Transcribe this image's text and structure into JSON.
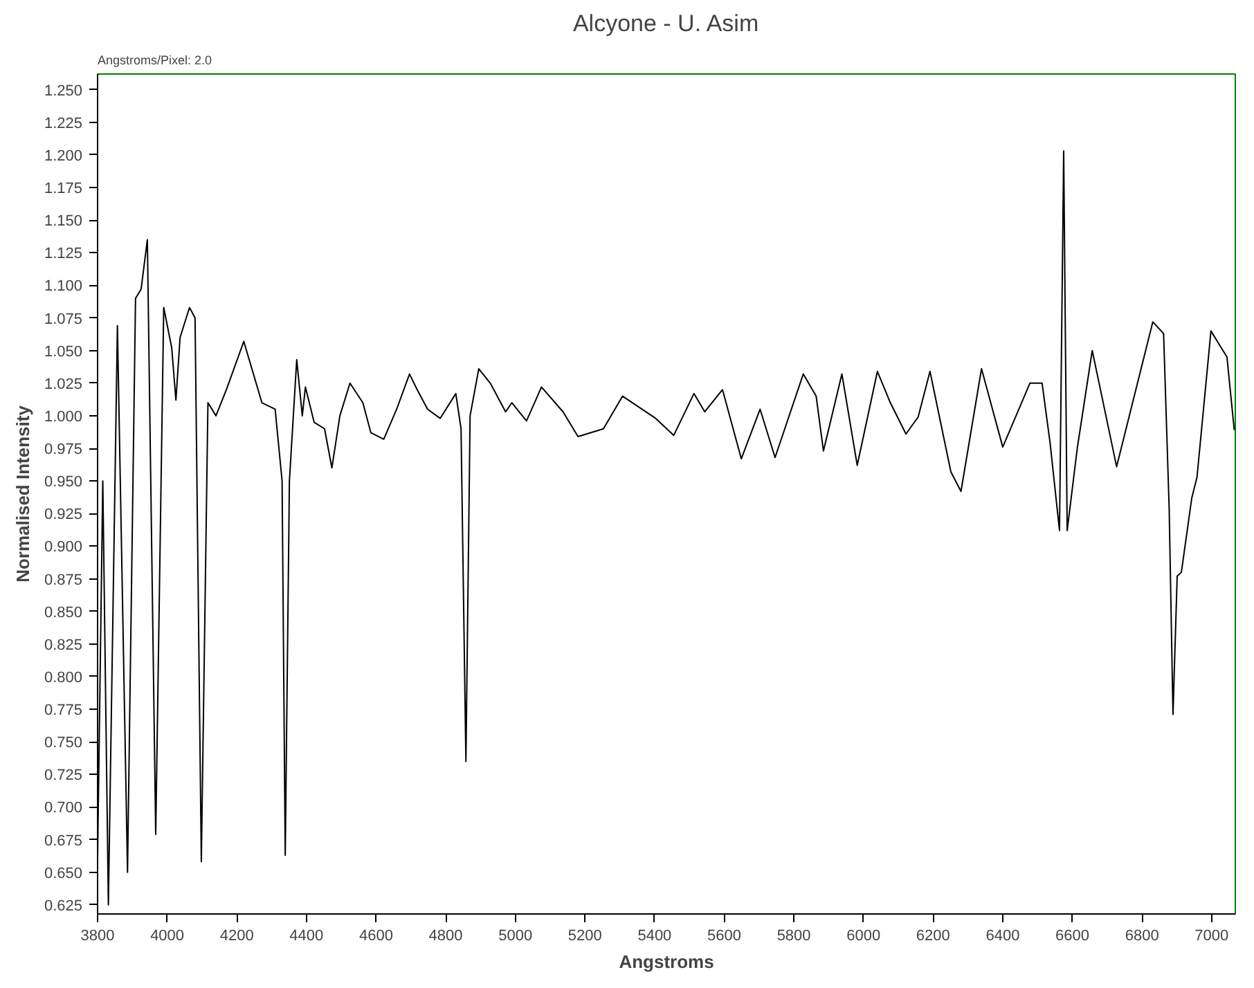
{
  "chart_data": {
    "type": "line",
    "title": "Alcyone - U. Asim",
    "xlabel": "Angstroms",
    "ylabel": "Normalised Intensity",
    "annotations": [
      "Angstroms/Pixel: 2.0"
    ],
    "x": [
      3800,
      3815,
      3831,
      3857,
      3886,
      3909,
      3925,
      3943,
      3967,
      3990,
      4013,
      4025,
      4037,
      4064,
      4080,
      4098,
      4117,
      4140,
      4170,
      4220,
      4272,
      4310,
      4330,
      4339,
      4351,
      4372,
      4388,
      4397,
      4422,
      4452,
      4473,
      4496,
      4525,
      4562,
      4585,
      4622,
      4659,
      4696,
      4718,
      4748,
      4784,
      4829,
      4844,
      4858,
      4870,
      4895,
      4928,
      4972,
      4990,
      5032,
      5075,
      5137,
      5180,
      5253,
      5308,
      5403,
      5455,
      5513,
      5544,
      5595,
      5649,
      5703,
      5746,
      5827,
      5864,
      5885,
      5938,
      5982,
      6040,
      6077,
      6122,
      6157,
      6191,
      6251,
      6280,
      6339,
      6400,
      6478,
      6513,
      6536,
      6563,
      6575,
      6585,
      6614,
      6657,
      6727,
      6831,
      6862,
      6878,
      6889,
      6901,
      6913,
      6943,
      6958,
      6998,
      7044,
      7065
    ],
    "series": [
      {
        "color": "#000000",
        "values": [
          0.66,
          0.95,
          0.625,
          1.069,
          0.65,
          1.09,
          1.097,
          1.135,
          0.679,
          1.083,
          1.052,
          1.012,
          1.06,
          1.083,
          1.075,
          0.658,
          1.01,
          1.0,
          1.02,
          1.057,
          1.01,
          1.005,
          0.95,
          0.663,
          0.95,
          1.043,
          1.0,
          1.022,
          0.995,
          0.99,
          0.96,
          1.0,
          1.025,
          1.01,
          0.987,
          0.982,
          1.005,
          1.032,
          1.02,
          1.005,
          0.998,
          1.017,
          0.99,
          0.735,
          1.0,
          1.036,
          1.025,
          1.003,
          1.01,
          0.996,
          1.022,
          1.003,
          0.984,
          0.99,
          1.015,
          0.998,
          0.985,
          1.017,
          1.003,
          1.02,
          0.967,
          1.005,
          0.968,
          1.032,
          1.015,
          0.973,
          1.032,
          0.962,
          1.034,
          1.01,
          0.986,
          0.999,
          1.034,
          0.957,
          0.942,
          1.036,
          0.976,
          1.025,
          1.025,
          0.979,
          0.912,
          1.203,
          0.912,
          0.975,
          1.05,
          0.961,
          1.072,
          1.063,
          0.929,
          0.771,
          0.877,
          0.88,
          0.937,
          0.953,
          1.065,
          1.045,
          0.989
        ]
      }
    ],
    "xlim": [
      3800,
      7068
    ],
    "ylim": [
      0.618,
      1.262
    ],
    "xticks": [
      3800,
      4000,
      4200,
      4400,
      4600,
      4800,
      5000,
      5200,
      5400,
      5600,
      5800,
      6000,
      6200,
      6400,
      6600,
      6800,
      7000
    ],
    "yticks": [
      {
        "value": 0.625,
        "label": "0.625"
      },
      {
        "value": 0.65,
        "label": "0.650"
      },
      {
        "value": 0.675,
        "label": "0.675"
      },
      {
        "value": 0.7,
        "label": "0.700"
      },
      {
        "value": 0.725,
        "label": "0.725"
      },
      {
        "value": 0.75,
        "label": "0.750"
      },
      {
        "value": 0.775,
        "label": "0.775"
      },
      {
        "value": 0.8,
        "label": "0.800"
      },
      {
        "value": 0.825,
        "label": "0.825"
      },
      {
        "value": 0.85,
        "label": "0.850"
      },
      {
        "value": 0.875,
        "label": "0.875"
      },
      {
        "value": 0.9,
        "label": "0.900"
      },
      {
        "value": 0.925,
        "label": "0.925"
      },
      {
        "value": 0.95,
        "label": "0.950"
      },
      {
        "value": 0.975,
        "label": "0.975"
      },
      {
        "value": 1.0,
        "label": "1.000"
      },
      {
        "value": 1.025,
        "label": "1.025"
      },
      {
        "value": 1.05,
        "label": "1.050"
      },
      {
        "value": 1.075,
        "label": "1.075"
      },
      {
        "value": 1.1,
        "label": "1.100"
      },
      {
        "value": 1.125,
        "label": "1.125"
      },
      {
        "value": 1.15,
        "label": "1.150"
      },
      {
        "value": 1.175,
        "label": "1.175"
      },
      {
        "value": 1.2,
        "label": "1.200"
      },
      {
        "value": 1.225,
        "label": "1.225"
      },
      {
        "value": 1.25,
        "label": "1.250"
      }
    ],
    "grid": false,
    "marker": "none",
    "line_style": "solid"
  }
}
